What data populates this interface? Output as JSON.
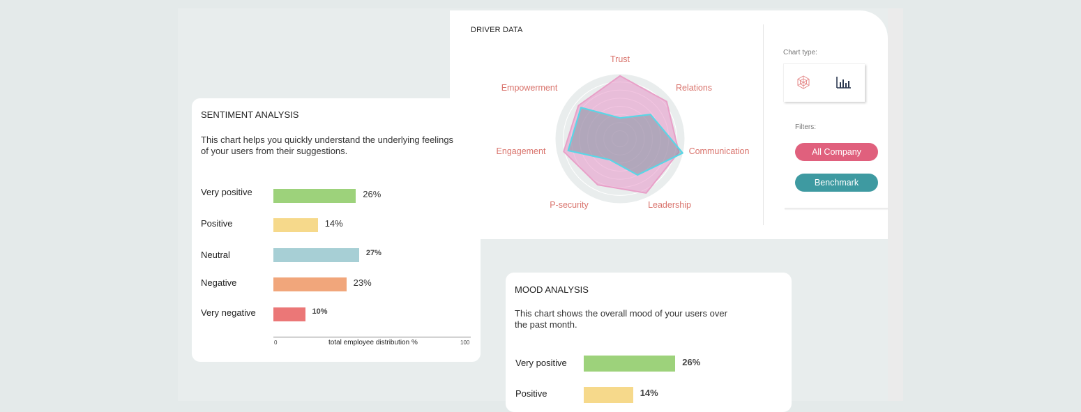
{
  "driver": {
    "title": "DRIVER DATA",
    "chart_type_label": "Chart type:",
    "filters_label": "Filters:",
    "filters": [
      {
        "label": "All Company",
        "color": "#e0607d"
      },
      {
        "label": "Benchmark",
        "color": "#3e9aa1"
      }
    ],
    "chart_icons": [
      "radar-chart-icon",
      "bar-chart-icon"
    ]
  },
  "chart_data": [
    {
      "type": "radar",
      "title": "DRIVER DATA",
      "axes": [
        "Trust",
        "Relations",
        "Communication",
        "Leadership",
        "P-security",
        "Engagement",
        "Empowerment"
      ],
      "series": [
        {
          "name": "All Company",
          "color": "#e8a0c8",
          "values": [
            0.97,
            0.92,
            0.93,
            0.93,
            0.79,
            0.89,
            0.82
          ]
        },
        {
          "name": "Benchmark",
          "color": "#5ad6e6",
          "values": [
            0.32,
            0.6,
            0.99,
            0.62,
            0.36,
            0.82,
            0.77
          ]
        }
      ]
    },
    {
      "type": "bar",
      "title": "SENTIMENT ANALYSIS",
      "categories": [
        "Very positive",
        "Positive",
        "Neutral",
        "Negative",
        "Very negative"
      ],
      "values": [
        26,
        14,
        27,
        23,
        10
      ],
      "xlim": [
        0,
        100
      ],
      "xlabel": "total employee distribution %"
    },
    {
      "type": "bar",
      "title": "MOOD ANALYSIS",
      "categories": [
        "Very positive",
        "Positive"
      ],
      "values": [
        26,
        14
      ]
    }
  ],
  "sentiment": {
    "title": "SENTIMENT ANALYSIS",
    "description": "This chart helps you quickly understand the underlying feelings of your users from their suggestions.",
    "rows": [
      {
        "label": "Very positive",
        "value": 26,
        "pct": "26%",
        "color": "#9dd27b"
      },
      {
        "label": "Positive",
        "value": 14,
        "pct": "14%",
        "color": "#f6d98b"
      },
      {
        "label": "Neutral",
        "value": 27,
        "pct": "27%",
        "color": "#a7cfd5"
      },
      {
        "label": "Negative",
        "value": 23,
        "pct": "23%",
        "color": "#f1a67b"
      },
      {
        "label": "Very negative",
        "value": 10,
        "pct": "10%",
        "color": "#eb7777"
      }
    ],
    "axis_min": "0",
    "axis_max": "100",
    "axis_caption": "total employee distribution %"
  },
  "mood": {
    "title": "MOOD ANALYSIS",
    "description": "This chart shows the overall mood of your users over the past month.",
    "rows": [
      {
        "label": "Very positive",
        "value": 26,
        "pct": "26%",
        "color": "#9dd27b"
      },
      {
        "label": "Positive",
        "value": 14,
        "pct": "14%",
        "color": "#f6d98b"
      }
    ]
  }
}
